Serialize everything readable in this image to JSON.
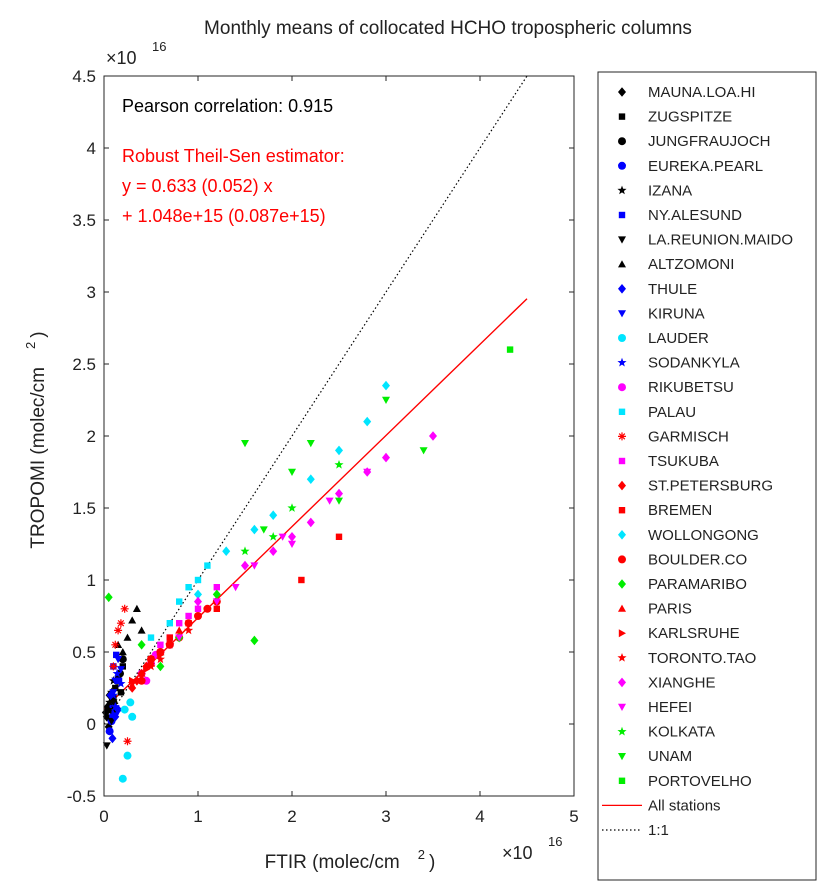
{
  "chart_data": {
    "type": "scatter",
    "title": "Monthly means of collocated HCHO tropospheric columns",
    "xlabel": "FTIR (molec/cm",
    "xlabel_sup": "2",
    "xlabel_close": ")",
    "ylabel": "TROPOMI (molec/cm",
    "ylabel_sup": "2",
    "ylabel_close": ")",
    "x_multiplier": "×10",
    "x_multiplier_exp": "16",
    "y_multiplier": "×10",
    "y_multiplier_exp": "16",
    "xlim": [
      0,
      5
    ],
    "ylim": [
      -0.5,
      4.5
    ],
    "xticks": [
      0,
      1,
      2,
      3,
      4,
      5
    ],
    "xtick_labels": [
      "0",
      "1",
      "2",
      "3",
      "4",
      "5"
    ],
    "yticks": [
      -0.5,
      0,
      0.5,
      1,
      1.5,
      2,
      2.5,
      3,
      3.5,
      4,
      4.5
    ],
    "ytick_labels": [
      "-0.5",
      "0",
      "0.5",
      "1",
      "1.5",
      "2",
      "2.5",
      "3",
      "3.5",
      "4",
      "4.5"
    ],
    "grid": false,
    "legend_position": "outside-right",
    "annotations": {
      "pearson": "Pearson correlation: 0.915",
      "theil_title": "Robust Theil-Sen estimator:",
      "theil_slope": "y = 0.633 (0.052) x",
      "theil_intercept": "+ 1.048e+15 (0.087e+15)"
    },
    "colors": {
      "black": "#000000",
      "blue": "#0000ff",
      "red": "#ff0000",
      "cyan": "#00e5ff",
      "magenta": "#ff00ff",
      "green": "#00ee00"
    },
    "fit_line": {
      "name": "All stations",
      "color": "#ff0000",
      "slope": 0.633,
      "intercept": 0.1048,
      "x_range": [
        0,
        4.5
      ]
    },
    "identity_line": {
      "name": "1:1",
      "color": "#000000",
      "x_range": [
        0,
        4.5
      ]
    },
    "series": [
      {
        "name": "MAUNA.LOA.HI",
        "marker": "diamond",
        "color": "#000000",
        "x": [
          0.03,
          0.05,
          0.04,
          0.06,
          0.02
        ],
        "y": [
          0.05,
          -0.02,
          0.12,
          0.2,
          0.08
        ]
      },
      {
        "name": "ZUGSPITZE",
        "marker": "square",
        "color": "#000000",
        "x": [
          0.12,
          0.15,
          0.1,
          0.2,
          0.18
        ],
        "y": [
          0.25,
          0.32,
          0.18,
          0.4,
          0.22
        ]
      },
      {
        "name": "JUNGFRAUJOCH",
        "marker": "circle",
        "color": "#000000",
        "x": [
          0.1,
          0.14,
          0.2,
          0.08,
          0.17
        ],
        "y": [
          0.15,
          0.3,
          0.45,
          0.1,
          0.35
        ]
      },
      {
        "name": "EUREKA.PEARL",
        "marker": "circle",
        "color": "#0000ff",
        "x": [
          0.08,
          0.12,
          0.06,
          0.1
        ],
        "y": [
          0.02,
          0.08,
          -0.05,
          0.12
        ]
      },
      {
        "name": "IZANA",
        "marker": "star",
        "color": "#000000",
        "x": [
          0.05,
          0.08,
          0.1,
          0.06
        ],
        "y": [
          0.1,
          0.22,
          0.3,
          0.15
        ]
      },
      {
        "name": "NY.ALESUND",
        "marker": "square",
        "color": "#0000ff",
        "x": [
          0.1,
          0.13,
          0.16,
          0.09
        ],
        "y": [
          0.4,
          0.48,
          0.3,
          0.05
        ]
      },
      {
        "name": "LA.REUNION.MAIDO",
        "marker": "triangle-down",
        "color": "#000000",
        "x": [
          0.08,
          0.1,
          0.12,
          0.03
        ],
        "y": [
          0.02,
          0.15,
          0.1,
          -0.15
        ]
      },
      {
        "name": "ALTZOMONI",
        "marker": "triangle-up",
        "color": "#000000",
        "x": [
          0.2,
          0.3,
          0.35,
          0.25,
          0.15,
          0.4
        ],
        "y": [
          0.5,
          0.72,
          0.8,
          0.6,
          0.55,
          0.65
        ]
      },
      {
        "name": "THULE",
        "marker": "diamond",
        "color": "#0000ff",
        "x": [
          0.09,
          0.12,
          0.07,
          0.15
        ],
        "y": [
          -0.1,
          0.05,
          0.2,
          0.1
        ]
      },
      {
        "name": "KIRUNA",
        "marker": "triangle-down",
        "color": "#0000ff",
        "x": [
          0.12,
          0.15,
          0.18,
          0.1
        ],
        "y": [
          0.3,
          0.45,
          0.38,
          0.22
        ]
      },
      {
        "name": "LAUDER",
        "marker": "circle",
        "color": "#00e5ff",
        "x": [
          0.2,
          0.25,
          0.3,
          0.22,
          0.28
        ],
        "y": [
          -0.38,
          -0.22,
          0.05,
          0.1,
          0.15
        ]
      },
      {
        "name": "SODANKYLA",
        "marker": "star",
        "color": "#0000ff",
        "x": [
          0.1,
          0.14,
          0.18,
          0.12
        ],
        "y": [
          0.2,
          0.35,
          0.28,
          0.12
        ]
      },
      {
        "name": "RIKUBETSU",
        "marker": "circle",
        "color": "#ff00ff",
        "x": [
          0.4,
          0.5,
          0.6,
          0.45,
          0.7,
          0.55
        ],
        "y": [
          0.35,
          0.42,
          0.5,
          0.3,
          0.55,
          0.48
        ]
      },
      {
        "name": "PALAU",
        "marker": "square",
        "color": "#00e5ff",
        "x": [
          0.5,
          0.7,
          0.9,
          1.1,
          0.8,
          1.0
        ],
        "y": [
          0.6,
          0.7,
          0.95,
          1.1,
          0.85,
          1.0
        ]
      },
      {
        "name": "GARMISCH",
        "marker": "asterisk",
        "color": "#ff0000",
        "x": [
          0.1,
          0.15,
          0.22,
          0.12,
          0.18,
          0.25
        ],
        "y": [
          0.4,
          0.65,
          0.8,
          0.55,
          0.7,
          -0.12
        ]
      },
      {
        "name": "TSUKUBA",
        "marker": "square",
        "color": "#ff00ff",
        "x": [
          0.6,
          0.8,
          1.0,
          1.2,
          0.9,
          0.7
        ],
        "y": [
          0.55,
          0.7,
          0.8,
          0.95,
          0.75,
          0.6
        ]
      },
      {
        "name": "ST.PETERSBURG",
        "marker": "diamond",
        "color": "#ff0000",
        "x": [
          0.3,
          0.4,
          0.5,
          0.35,
          0.45
        ],
        "y": [
          0.25,
          0.35,
          0.45,
          0.3,
          0.4
        ]
      },
      {
        "name": "BREMEN",
        "marker": "square",
        "color": "#ff0000",
        "x": [
          0.5,
          0.7,
          2.1,
          2.5,
          0.9,
          1.2
        ],
        "y": [
          0.45,
          0.6,
          1.0,
          1.3,
          0.7,
          0.8
        ]
      },
      {
        "name": "WOLLONGONG",
        "marker": "diamond",
        "color": "#00e5ff",
        "x": [
          1.0,
          1.3,
          1.6,
          2.2,
          2.8,
          3.0,
          1.8,
          2.5
        ],
        "y": [
          0.9,
          1.2,
          1.35,
          1.7,
          2.1,
          2.35,
          1.45,
          1.9
        ]
      },
      {
        "name": "BOULDER.CO",
        "marker": "circle",
        "color": "#ff0000",
        "x": [
          0.4,
          0.6,
          0.8,
          1.0,
          1.2,
          0.7,
          0.9,
          0.5,
          1.1
        ],
        "y": [
          0.3,
          0.5,
          0.6,
          0.75,
          0.85,
          0.55,
          0.7,
          0.45,
          0.8
        ]
      },
      {
        "name": "PARAMARIBO",
        "marker": "diamond",
        "color": "#00ee00",
        "x": [
          0.05,
          0.4,
          0.8,
          1.2,
          1.6,
          0.6
        ],
        "y": [
          0.88,
          0.55,
          0.6,
          0.9,
          0.58,
          0.4
        ]
      },
      {
        "name": "PARIS",
        "marker": "triangle-up",
        "color": "#ff0000",
        "x": [
          0.4,
          0.6,
          0.8,
          0.5,
          0.7
        ],
        "y": [
          0.35,
          0.5,
          0.65,
          0.42,
          0.58
        ]
      },
      {
        "name": "KARLSRUHE",
        "marker": "triangle-right",
        "color": "#ff0000",
        "x": [
          0.3,
          0.5,
          0.7,
          0.45,
          0.6
        ],
        "y": [
          0.3,
          0.42,
          0.55,
          0.38,
          0.48
        ]
      },
      {
        "name": "TORONTO.TAO",
        "marker": "star",
        "color": "#ff0000",
        "x": [
          0.3,
          0.5,
          0.7,
          0.9,
          0.6
        ],
        "y": [
          0.28,
          0.4,
          0.55,
          0.65,
          0.45
        ]
      },
      {
        "name": "XIANGHE",
        "marker": "diamond",
        "color": "#ff00ff",
        "x": [
          1.0,
          1.5,
          2.0,
          2.5,
          3.0,
          3.5,
          1.8,
          2.8,
          2.2
        ],
        "y": [
          0.85,
          1.1,
          1.3,
          1.6,
          1.85,
          2.0,
          1.2,
          1.75,
          1.4
        ]
      },
      {
        "name": "HEFEI",
        "marker": "triangle-down",
        "color": "#ff00ff",
        "x": [
          0.8,
          1.2,
          1.6,
          2.0,
          2.4,
          2.8,
          1.4,
          1.9
        ],
        "y": [
          0.6,
          0.85,
          1.1,
          1.25,
          1.55,
          1.75,
          0.95,
          1.3
        ]
      },
      {
        "name": "KOLKATA",
        "marker": "star",
        "color": "#00ee00",
        "x": [
          1.5,
          2.0,
          2.5,
          1.8
        ],
        "y": [
          1.2,
          1.5,
          1.8,
          1.3
        ]
      },
      {
        "name": "UNAM",
        "marker": "triangle-down",
        "color": "#00ee00",
        "x": [
          1.5,
          2.0,
          2.5,
          3.0,
          3.4,
          1.7,
          2.2
        ],
        "y": [
          1.95,
          1.75,
          1.55,
          2.25,
          1.9,
          1.35,
          1.95
        ]
      },
      {
        "name": "PORTOVELHO",
        "marker": "square",
        "color": "#00ee00",
        "x": [
          4.32
        ],
        "y": [
          2.6
        ]
      }
    ]
  }
}
